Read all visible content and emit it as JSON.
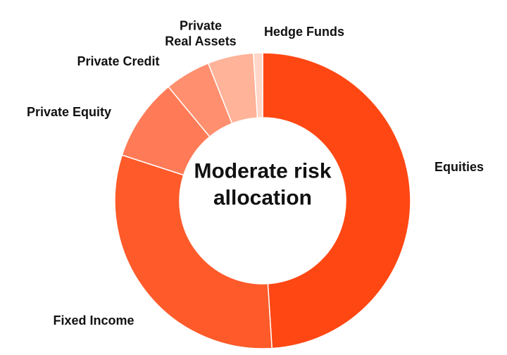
{
  "chart_data": {
    "type": "donut",
    "title": "Moderate risk\nallocation",
    "categories": [
      "Equities",
      "Fixed Income",
      "Private Equity",
      "Private Credit",
      "Private\nReal Assets",
      "Hedge Funds"
    ],
    "values": [
      49,
      31,
      9,
      5,
      5,
      1
    ],
    "colors": [
      "#ff4713",
      "#fe5a2a",
      "#ff7b57",
      "#ff8f6e",
      "#ffb399",
      "#ffd6c7"
    ]
  }
}
